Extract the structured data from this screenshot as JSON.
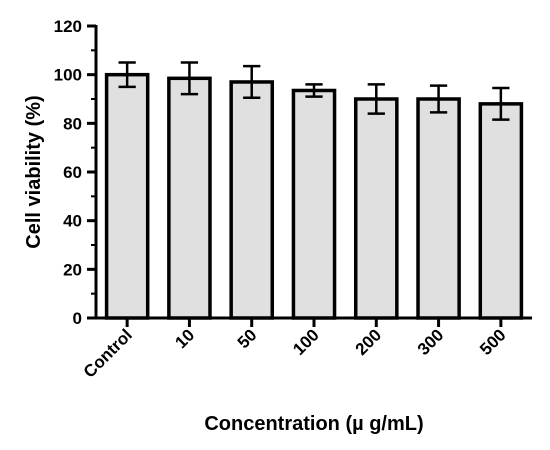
{
  "chart_data": {
    "type": "bar",
    "categories": [
      "Control",
      "10",
      "50",
      "100",
      "200",
      "300",
      "500"
    ],
    "values": [
      100,
      98.5,
      97,
      93.5,
      90,
      90,
      88
    ],
    "errors": [
      5,
      6.5,
      6.5,
      2.5,
      6,
      5.5,
      6.5
    ],
    "xlabel": "Concentration (µ g/mL)",
    "ylabel": "Cell viability (%)",
    "ylim": [
      0,
      120
    ],
    "yticks": [
      0,
      20,
      40,
      60,
      80,
      100,
      120
    ],
    "grid": false,
    "colors": {
      "bar_fill": "#e0e0e0",
      "bar_stroke": "#000000",
      "axis": "#000000"
    }
  }
}
